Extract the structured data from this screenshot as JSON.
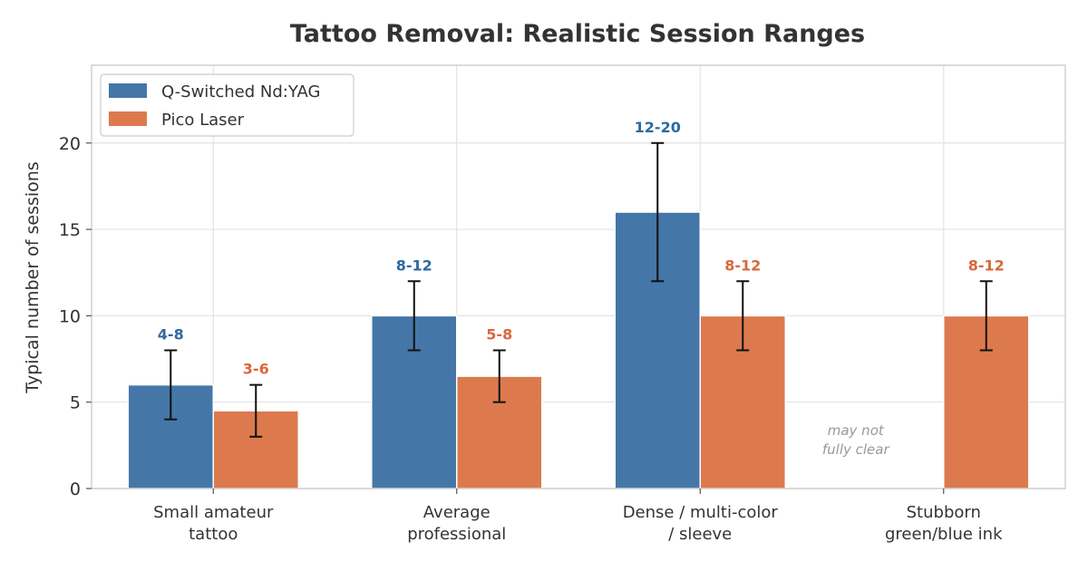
{
  "chart_data": {
    "type": "bar",
    "title": "Tattoo Removal: Realistic Session Ranges",
    "xlabel": "",
    "ylabel": "Typical number of sessions",
    "ylim": [
      0,
      24.5
    ],
    "yticks": [
      0,
      5,
      10,
      15,
      20
    ],
    "grid": true,
    "legend_position": "top-left",
    "categories": [
      "Small amateur\ntattoo",
      "Average\nprofessional",
      "Dense / multi-color\n/ sleeve",
      "Stubborn\ngreen/blue ink"
    ],
    "series": [
      {
        "name": "Q-Switched Nd:YAG",
        "color": "#4477a8",
        "label_color": "#2e6a9e",
        "values": [
          6,
          10,
          16,
          null
        ],
        "err_low": [
          4,
          8,
          12,
          null
        ],
        "err_high": [
          8,
          12,
          20,
          null
        ],
        "labels": [
          "4-8",
          "8-12",
          "12-20",
          null
        ]
      },
      {
        "name": "Pico Laser",
        "color": "#dc7a4e",
        "label_color": "#d9683c",
        "values": [
          4.5,
          6.5,
          10,
          10
        ],
        "err_low": [
          3,
          5,
          8,
          8
        ],
        "err_high": [
          6,
          8,
          12,
          12
        ],
        "labels": [
          "3-6",
          "5-8",
          "8-12",
          "8-12"
        ]
      }
    ],
    "annotations": [
      {
        "text": "may not\nfully clear",
        "category_index": 3,
        "series_index": 0
      }
    ]
  }
}
